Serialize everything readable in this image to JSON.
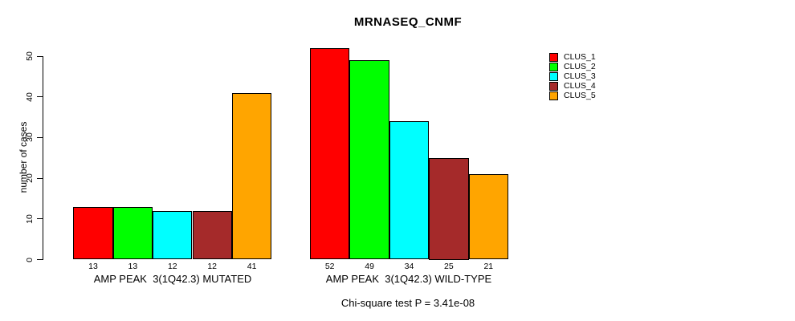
{
  "title": "MRNASEQ_CNMF",
  "footer": "Chi-square test P = 3.41e-08",
  "chart_data": {
    "type": "bar",
    "title": "MRNASEQ_CNMF",
    "ylabel": "number of cases",
    "xlabel": "",
    "ylim": [
      0,
      50
    ],
    "yticks": [
      0,
      10,
      20,
      30,
      40,
      50
    ],
    "grid": false,
    "legend_position": "top-right",
    "bar_value_labels_shown": true,
    "categories": [
      "AMP PEAK  3(1Q42.3) MUTATED",
      "AMP PEAK  3(1Q42.3) WILD-TYPE"
    ],
    "series": [
      {
        "name": "CLUS_1",
        "color": "#ff0000",
        "values": [
          13,
          52
        ]
      },
      {
        "name": "CLUS_2",
        "color": "#00ff00",
        "values": [
          13,
          49
        ]
      },
      {
        "name": "CLUS_3",
        "color": "#00ffff",
        "values": [
          12,
          34
        ]
      },
      {
        "name": "CLUS_4",
        "color": "#a52a2a",
        "values": [
          12,
          25
        ]
      },
      {
        "name": "CLUS_5",
        "color": "#ffa500",
        "values": [
          41,
          21
        ]
      }
    ],
    "annotation": "Chi-square test P = 3.41e-08"
  }
}
